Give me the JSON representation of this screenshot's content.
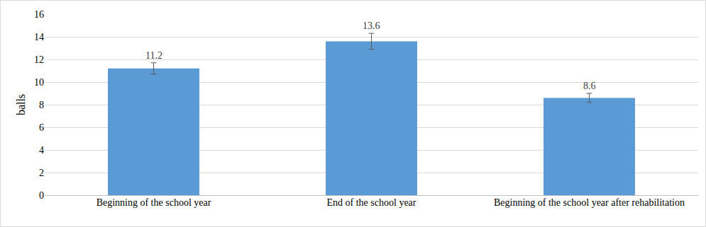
{
  "chart_data": {
    "type": "bar",
    "y_label": "balls",
    "categories": [
      "Beginning of the school year",
      "End of the school year",
      "Beginning of the school year after rehabilitation"
    ],
    "values": [
      11.2,
      13.6,
      8.6
    ],
    "error": [
      0.5,
      0.7,
      0.4
    ],
    "color": "#5b9bd5",
    "ylim": [
      0,
      16
    ],
    "yticks": [
      0,
      2,
      4,
      6,
      8,
      10,
      12,
      14,
      16
    ],
    "grid": true,
    "data_labels": true
  }
}
